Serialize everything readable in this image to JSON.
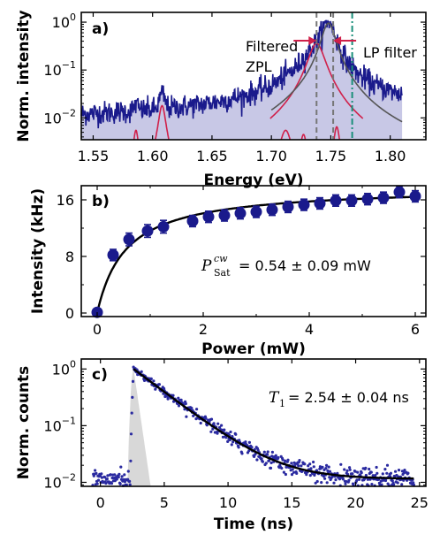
{
  "chart_data": [
    {
      "type": "line",
      "panel_label": "a)",
      "xlabel": "Energy (eV)",
      "ylabel": "Norm. intensity",
      "xlim": [
        1.54,
        1.83
      ],
      "ylim": [
        0.0035,
        1.6
      ],
      "yscale": "log",
      "x_ticks": [
        1.55,
        1.6,
        1.65,
        1.7,
        1.75,
        1.8
      ],
      "x_tick_labels": [
        "1.55",
        "1.60",
        "1.65",
        "1.70",
        "1.75",
        "1.80"
      ],
      "y_ticks": [
        0.01,
        0.1,
        1
      ],
      "y_tick_labels": [
        "10",
        "10",
        "10"
      ],
      "y_tick_exponents": [
        "−2",
        "−1",
        "0"
      ],
      "spectrum": {
        "color": "#1a1a8c",
        "fill_color": "#c8c8e6",
        "x_range": [
          1.54,
          1.81
        ],
        "baseline": 0.0035,
        "peak_x": 1.748,
        "peak_y": 1.0
      },
      "total_fit": {
        "color": "#555555",
        "peak_x": 1.748,
        "peak_y": 0.95
      },
      "lorentzian_components": {
        "color": "#d0204a",
        "peaks": [
          {
            "x": 1.586,
            "y": 0.0055
          },
          {
            "x": 1.608,
            "y": 0.018
          },
          {
            "x": 1.712,
            "y": 0.0055
          },
          {
            "x": 1.727,
            "y": 0.0045
          },
          {
            "x": 1.738,
            "y": 0.36
          },
          {
            "x": 1.755,
            "y": 0.0065
          }
        ]
      },
      "filter_lines": [
        {
          "x": 1.738,
          "style": "dashed",
          "color": "#777777"
        },
        {
          "x": 1.752,
          "style": "dashed",
          "color": "#777777"
        },
        {
          "x": 1.768,
          "style": "dashdot",
          "color": "#1a8f7a"
        }
      ],
      "annotations": {
        "filtered_line1": "Filtered",
        "filtered_line2": "ZPL",
        "lp_filter": "LP filter",
        "arrow_color": "#d0204a"
      }
    },
    {
      "type": "scatter",
      "panel_label": "b)",
      "xlabel": "Power (mW)",
      "ylabel": "Intensity (kHz)",
      "xlim": [
        -0.3,
        6.2
      ],
      "ylim": [
        -0.5,
        18
      ],
      "x_ticks": [
        0,
        2,
        4,
        6
      ],
      "y_ticks": [
        0,
        8,
        16
      ],
      "marker_color": "#1a1a8c",
      "points": [
        {
          "x": 0.0,
          "y": 0.1,
          "err": 0.4
        },
        {
          "x": 0.3,
          "y": 8.2,
          "err": 0.8
        },
        {
          "x": 0.6,
          "y": 10.4,
          "err": 0.9
        },
        {
          "x": 0.95,
          "y": 11.6,
          "err": 0.9
        },
        {
          "x": 1.25,
          "y": 12.2,
          "err": 0.9
        },
        {
          "x": 1.8,
          "y": 13.0,
          "err": 0.8
        },
        {
          "x": 2.1,
          "y": 13.6,
          "err": 0.8
        },
        {
          "x": 2.4,
          "y": 13.8,
          "err": 0.8
        },
        {
          "x": 2.7,
          "y": 14.1,
          "err": 0.8
        },
        {
          "x": 3.0,
          "y": 14.3,
          "err": 0.8
        },
        {
          "x": 3.3,
          "y": 14.6,
          "err": 0.8
        },
        {
          "x": 3.6,
          "y": 15.0,
          "err": 0.8
        },
        {
          "x": 3.9,
          "y": 15.3,
          "err": 0.8
        },
        {
          "x": 4.2,
          "y": 15.5,
          "err": 0.8
        },
        {
          "x": 4.5,
          "y": 15.9,
          "err": 0.8
        },
        {
          "x": 4.8,
          "y": 15.9,
          "err": 0.8
        },
        {
          "x": 5.1,
          "y": 16.1,
          "err": 0.8
        },
        {
          "x": 5.4,
          "y": 16.3,
          "err": 0.8
        },
        {
          "x": 5.7,
          "y": 17.1,
          "err": 0.8
        },
        {
          "x": 6.0,
          "y": 16.5,
          "err": 0.8
        }
      ],
      "fit": {
        "model": "I_inf * P / (P + P_sat)",
        "I_inf": 17.9,
        "P_sat": 0.54,
        "color": "#000000"
      },
      "annotation": {
        "symbol": "P",
        "superscript": "cw",
        "subscript": "Sat",
        "text": "= 0.54 ± 0.09 mW"
      }
    },
    {
      "type": "scatter",
      "panel_label": "c)",
      "xlabel": "Time (ns)",
      "ylabel": "Norm. counts",
      "xlim": [
        -1.5,
        25.5
      ],
      "ylim": [
        0.0085,
        1.5
      ],
      "yscale": "log",
      "x_ticks": [
        0,
        5,
        10,
        15,
        20,
        25
      ],
      "y_ticks": [
        0.01,
        0.1,
        1
      ],
      "y_tick_labels": [
        "10",
        "10",
        "10"
      ],
      "y_tick_exponents": [
        "−2",
        "−1",
        "0"
      ],
      "marker_color": "#2a2aa0",
      "irf_color": "#d8d8d8",
      "decay": {
        "t0": 2.6,
        "tau": 2.54,
        "amplitude": 1.0,
        "background": 0.0115,
        "t_start": -0.6,
        "t_end": 24.6
      },
      "irf": {
        "t0": 2.6,
        "peak": 1.0,
        "t_end": 4.2
      },
      "fit_color": "#000000",
      "annotation": {
        "symbol": "T",
        "subscript": "1",
        "text": "= 2.54 ± 0.04 ns"
      }
    }
  ]
}
